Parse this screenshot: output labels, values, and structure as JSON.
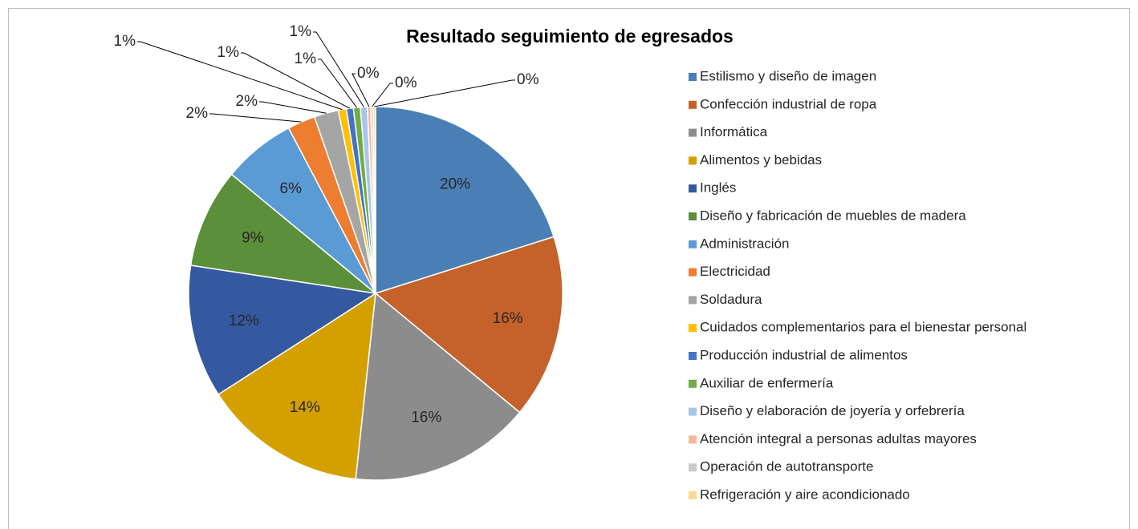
{
  "chart_data": {
    "type": "pie",
    "title": "Resultado seguimiento de egresados",
    "categories": [
      "Estilismo y diseño de imagen",
      "Confección industrial de ropa",
      "Informática",
      "Alimentos y bebidas",
      "Inglés",
      "Diseño y fabricación de muebles de madera",
      "Administración",
      "Electricidad",
      "Soldadura",
      "Cuidados complementarios para el bienestar personal",
      "Producción industrial de alimentos",
      "Auxiliar de enfermería",
      "Diseño y elaboración de joyería y orfebrería",
      "Atención integral a personas adultas mayores",
      "Operación de autotransporte",
      "Refrigeración y aire acondicionado"
    ],
    "values": [
      20.1,
      15.9,
      15.7,
      14.2,
      11.5,
      8.6,
      6.3,
      2.4,
      2.1,
      0.7,
      0.6,
      0.6,
      0.6,
      0.3,
      0.2,
      0.2
    ],
    "value_labels": [
      "20%",
      "16%",
      "16%",
      "14%",
      "12%",
      "9%",
      "6%",
      "2%",
      "2%",
      "1%",
      "1%",
      "1%",
      "1%",
      "0%",
      "0%",
      "0%"
    ],
    "colors": [
      "#4a7fb5",
      "#c5612a",
      "#8c8c8c",
      "#d4a000",
      "#3559a0",
      "#5b8f3a",
      "#5b9bd5",
      "#ed7d31",
      "#a5a5a5",
      "#ffc000",
      "#4472c4",
      "#70ad47",
      "#a9c6e8",
      "#f4b9a0",
      "#c9c9c9",
      "#ffd98a"
    ],
    "legend": "right"
  }
}
